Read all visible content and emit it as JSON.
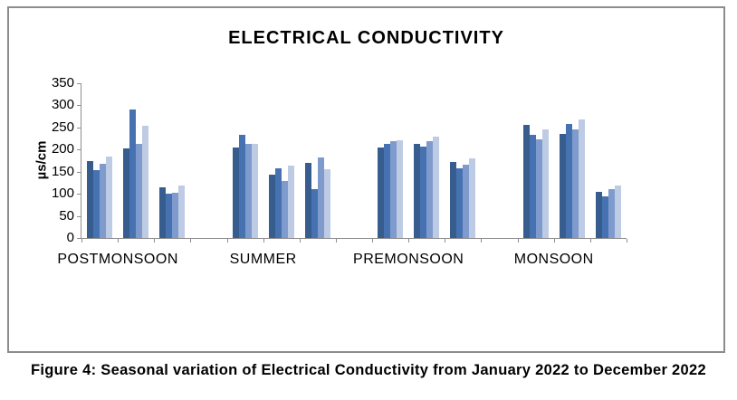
{
  "figure": {
    "caption": "Figure 4: Seasonal variation of Electrical Conductivity from January 2022 to December 2022"
  },
  "chart_data": {
    "type": "bar",
    "title": "ELECTRICAL CONDUCTIVITY",
    "ylabel": "µs/cm",
    "ylim": [
      0,
      350
    ],
    "yticks": [
      0,
      50,
      100,
      150,
      200,
      250,
      300,
      350
    ],
    "grid": false,
    "legend": "none",
    "categories": [
      "POSTMONSOON",
      "SUMMER",
      "PREMONSOON",
      "MONSOON"
    ],
    "series_colors": [
      "#365D8E",
      "#4672B2",
      "#7F9BCD",
      "#BECBE4"
    ],
    "seasons": [
      {
        "label": "POSTMONSOON",
        "clusters": [
          [
            174,
            153,
            167,
            184
          ],
          [
            203,
            291,
            212,
            254
          ],
          [
            115,
            100,
            103,
            119
          ]
        ]
      },
      {
        "label": "SUMMER",
        "clusters": [
          [
            205,
            233,
            213,
            213
          ],
          [
            143,
            158,
            128,
            164
          ],
          [
            170,
            110,
            183,
            155
          ]
        ]
      },
      {
        "label": "PREMONSOON",
        "clusters": [
          [
            205,
            213,
            220,
            222
          ],
          [
            212,
            206,
            219,
            229
          ],
          [
            172,
            158,
            165,
            180
          ]
        ]
      },
      {
        "label": "MONSOON",
        "clusters": [
          [
            255,
            233,
            223,
            245
          ],
          [
            235,
            258,
            246,
            268
          ],
          [
            104,
            95,
            110,
            119
          ]
        ]
      }
    ],
    "axis_color": "#8E8E8E",
    "frame_color": "#8C8C8C",
    "text_color": "#000000"
  }
}
